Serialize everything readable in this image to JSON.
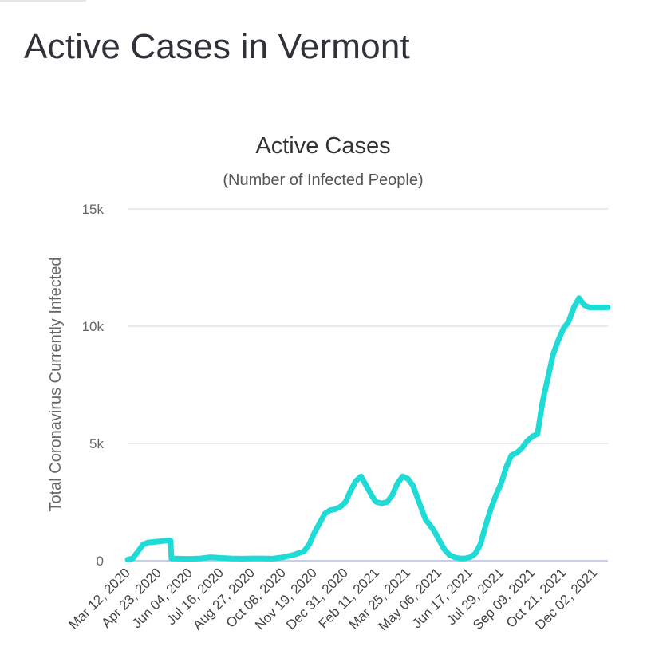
{
  "page": {
    "title": "Active Cases in Vermont"
  },
  "chart_data": {
    "type": "line",
    "title": "Active Cases",
    "subtitle": "(Number of Infected People)",
    "xlabel": "",
    "ylabel": "Total Coronavirus Currently Infected",
    "ylim": [
      0,
      15000
    ],
    "yticks": [
      0,
      5000,
      10000,
      15000
    ],
    "ytick_labels": [
      "0",
      "5k",
      "10k",
      "15k"
    ],
    "grid": true,
    "legend": "none",
    "categories": [
      "Mar 12, 2020",
      "Apr 23, 2020",
      "Jun 04, 2020",
      "Jul 16, 2020",
      "Aug 27, 2020",
      "Oct 08, 2020",
      "Nov 19, 2020",
      "Dec 31, 2020",
      "Feb 11, 2021",
      "Mar 25, 2021",
      "May 06, 2021",
      "Jun 17, 2021",
      "Jul 29, 2021",
      "Sep 09, 2021",
      "Oct 21, 2021",
      "Dec 02, 2021"
    ],
    "series": [
      {
        "color": "#1fdbd5",
        "x": [
          "2020-03-12",
          "2020-03-19",
          "2020-03-26",
          "2020-04-02",
          "2020-04-09",
          "2020-04-16",
          "2020-04-23",
          "2020-04-30",
          "2020-05-07",
          "2020-05-09",
          "2020-05-10",
          "2020-05-21",
          "2020-06-04",
          "2020-06-18",
          "2020-07-02",
          "2020-07-16",
          "2020-07-30",
          "2020-08-13",
          "2020-08-27",
          "2020-09-10",
          "2020-09-24",
          "2020-10-08",
          "2020-10-22",
          "2020-11-05",
          "2020-11-12",
          "2020-11-19",
          "2020-11-26",
          "2020-12-03",
          "2020-12-10",
          "2020-12-17",
          "2020-12-24",
          "2020-12-31",
          "2021-01-07",
          "2021-01-14",
          "2021-01-21",
          "2021-01-28",
          "2021-02-04",
          "2021-02-08",
          "2021-02-11",
          "2021-02-18",
          "2021-02-25",
          "2021-03-04",
          "2021-03-11",
          "2021-03-18",
          "2021-03-25",
          "2021-04-01",
          "2021-04-08",
          "2021-04-15",
          "2021-04-18",
          "2021-04-22",
          "2021-04-29",
          "2021-05-06",
          "2021-05-13",
          "2021-05-20",
          "2021-05-27",
          "2021-06-03",
          "2021-06-10",
          "2021-06-17",
          "2021-06-24",
          "2021-07-01",
          "2021-07-08",
          "2021-07-15",
          "2021-07-22",
          "2021-07-29",
          "2021-08-05",
          "2021-08-12",
          "2021-08-19",
          "2021-08-26",
          "2021-09-02",
          "2021-09-09",
          "2021-09-16",
          "2021-09-23",
          "2021-09-30",
          "2021-10-07",
          "2021-10-14",
          "2021-10-21",
          "2021-10-28",
          "2021-11-04",
          "2021-11-11",
          "2021-11-18",
          "2021-11-25",
          "2021-12-02",
          "2021-12-09",
          "2021-12-16",
          "2021-12-20"
        ],
        "values": [
          50,
          100,
          400,
          700,
          780,
          800,
          820,
          850,
          870,
          850,
          100,
          90,
          80,
          100,
          150,
          120,
          100,
          90,
          100,
          100,
          90,
          150,
          250,
          400,
          700,
          1200,
          1600,
          2000,
          2150,
          2200,
          2300,
          2500,
          3000,
          3400,
          3600,
          3200,
          2800,
          2600,
          2500,
          2450,
          2500,
          2800,
          3300,
          3600,
          3500,
          3200,
          2600,
          2000,
          1750,
          1600,
          1300,
          900,
          500,
          250,
          150,
          100,
          100,
          150,
          300,
          700,
          1500,
          2200,
          2800,
          3300,
          4000,
          4500,
          4600,
          4800,
          5100,
          5300,
          5400,
          6800,
          7800,
          8800,
          9400,
          9900,
          10200,
          10800,
          11200,
          10900,
          10800,
          10800,
          10800,
          10800,
          10800
        ]
      }
    ]
  }
}
